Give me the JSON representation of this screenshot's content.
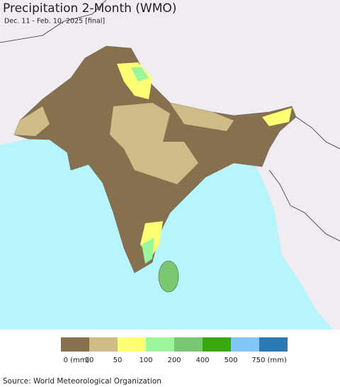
{
  "header": {
    "title": "Precipitation 2-Month (WMO)",
    "subtitle": "Dec. 11 - Feb. 10, 2025 [final]"
  },
  "legend": {
    "items": [
      {
        "color": "#86704e",
        "label": "0 (mm)"
      },
      {
        "color": "#cfbb85",
        "label": "10"
      },
      {
        "color": "#ffff75",
        "label": "50"
      },
      {
        "color": "#9cf79c",
        "label": "100"
      },
      {
        "color": "#7ac872",
        "label": "200"
      },
      {
        "color": "#38a80e",
        "label": "400"
      },
      {
        "color": "#82c6f7",
        "label": "500"
      },
      {
        "color": "#2c7ab4",
        "label": "750 (mm)"
      }
    ]
  },
  "source": "Source: World Meteorological Organization"
}
